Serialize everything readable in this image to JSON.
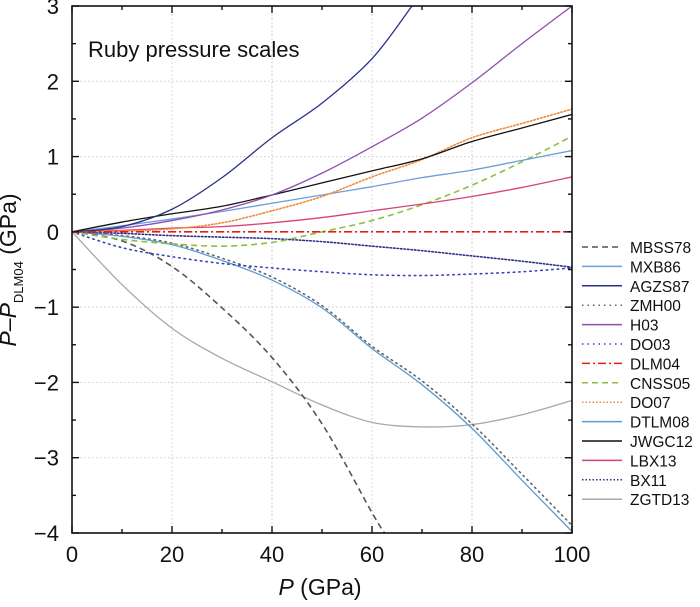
{
  "chart_data": {
    "type": "line",
    "title": "Ruby pressure scales",
    "xlabel": {
      "italic": "P",
      "rest": " (GPa)"
    },
    "ylabel": {
      "italic1": "P",
      "dash": "–",
      "italic2": "P",
      "sub": "DLM04",
      "rest": " (GPa)"
    },
    "xlim": [
      0,
      100
    ],
    "ylim": [
      -4,
      3
    ],
    "xticks": [
      0,
      20,
      40,
      60,
      80,
      100
    ],
    "xtick_labels": [
      "0",
      "20",
      "40",
      "60",
      "80",
      "100"
    ],
    "yticks": [
      3,
      2,
      1,
      0,
      -1,
      -2,
      -3,
      -4
    ],
    "ytick_labels": [
      "3",
      "2",
      "1",
      "0",
      "−1",
      "−2",
      "−3",
      "−4"
    ],
    "grid": true,
    "legend_position": "right-outside",
    "x": [
      0,
      10,
      20,
      30,
      40,
      50,
      60,
      70,
      80,
      90,
      100
    ],
    "series": [
      {
        "name": "MBSS78",
        "color": "#555555",
        "style": "dashed",
        "values": [
          0,
          -0.12,
          -0.46,
          -1.01,
          -1.67,
          -2.55,
          -3.73,
          null,
          null,
          null,
          null
        ],
        "extra_point": [
          62.5,
          -4.0
        ]
      },
      {
        "name": "MXB86",
        "color": "#6a9fd8",
        "style": "solid",
        "values": [
          0,
          0.08,
          0.17,
          0.27,
          0.38,
          0.49,
          0.6,
          0.72,
          0.82,
          0.95,
          1.08
        ]
      },
      {
        "name": "AGZS87",
        "color": "#2b2f8a",
        "style": "solid",
        "values": [
          0,
          0.07,
          0.3,
          0.72,
          1.25,
          1.71,
          2.3,
          null,
          null,
          null,
          null
        ],
        "extra_point": [
          68,
          3.0
        ]
      },
      {
        "name": "ZMH00",
        "color": "#666666",
        "style": "dotted",
        "values": [
          0,
          -0.05,
          -0.15,
          -0.35,
          -0.6,
          -0.98,
          -1.52,
          -1.98,
          -2.55,
          -3.22,
          -3.9
        ]
      },
      {
        "name": "H03",
        "color": "#8e4fb0",
        "style": "solid",
        "values": [
          0,
          0.05,
          0.15,
          0.29,
          0.49,
          0.78,
          1.13,
          1.51,
          1.98,
          2.5,
          3.0
        ]
      },
      {
        "name": "DO03",
        "color": "#3a45b5",
        "style": "dotted",
        "values": [
          0,
          -0.21,
          -0.33,
          -0.42,
          -0.48,
          -0.53,
          -0.57,
          -0.58,
          -0.56,
          -0.53,
          -0.48
        ]
      },
      {
        "name": "DLM04",
        "color": "#e02010",
        "style": "dashdot",
        "values": [
          0,
          0,
          0,
          0,
          0,
          0,
          0,
          0,
          0,
          0,
          0
        ]
      },
      {
        "name": "CNSS05",
        "color": "#8cbf3f",
        "style": "dashed",
        "values": [
          0,
          -0.1,
          -0.16,
          -0.19,
          -0.14,
          0.0,
          0.15,
          0.36,
          0.62,
          0.93,
          1.27
        ]
      },
      {
        "name": "DO07",
        "color": "#f08a3c",
        "style": "dotted-dense",
        "values": [
          0,
          0.01,
          0.04,
          0.12,
          0.28,
          0.47,
          0.73,
          0.96,
          1.25,
          1.44,
          1.63
        ]
      },
      {
        "name": "DTLM08",
        "color": "#5b9bd5",
        "style": "solid",
        "values": [
          0,
          -0.06,
          -0.17,
          -0.38,
          -0.64,
          -1.01,
          -1.55,
          -2.03,
          -2.61,
          -3.3,
          -3.98
        ]
      },
      {
        "name": "JWGC12",
        "color": "#111111",
        "style": "solid",
        "values": [
          0,
          0.13,
          0.24,
          0.34,
          0.49,
          0.65,
          0.81,
          0.97,
          1.2,
          1.38,
          1.56
        ]
      },
      {
        "name": "LBX13",
        "color": "#d9407a",
        "style": "solid",
        "values": [
          0,
          0.02,
          0.05,
          0.07,
          0.12,
          0.19,
          0.28,
          0.37,
          0.47,
          0.59,
          0.73
        ]
      },
      {
        "name": "BX11",
        "color": "#2b2f8a",
        "style": "dotted-dense",
        "values": [
          0,
          -0.02,
          -0.05,
          -0.07,
          -0.09,
          -0.13,
          -0.19,
          -0.25,
          -0.32,
          -0.39,
          -0.47
        ]
      },
      {
        "name": "ZGTD13",
        "color": "#a8a8a8",
        "style": "solid",
        "values": [
          0,
          -0.7,
          -1.28,
          -1.68,
          -1.99,
          -2.3,
          -2.53,
          -2.59,
          -2.56,
          -2.43,
          -2.24
        ]
      }
    ]
  }
}
